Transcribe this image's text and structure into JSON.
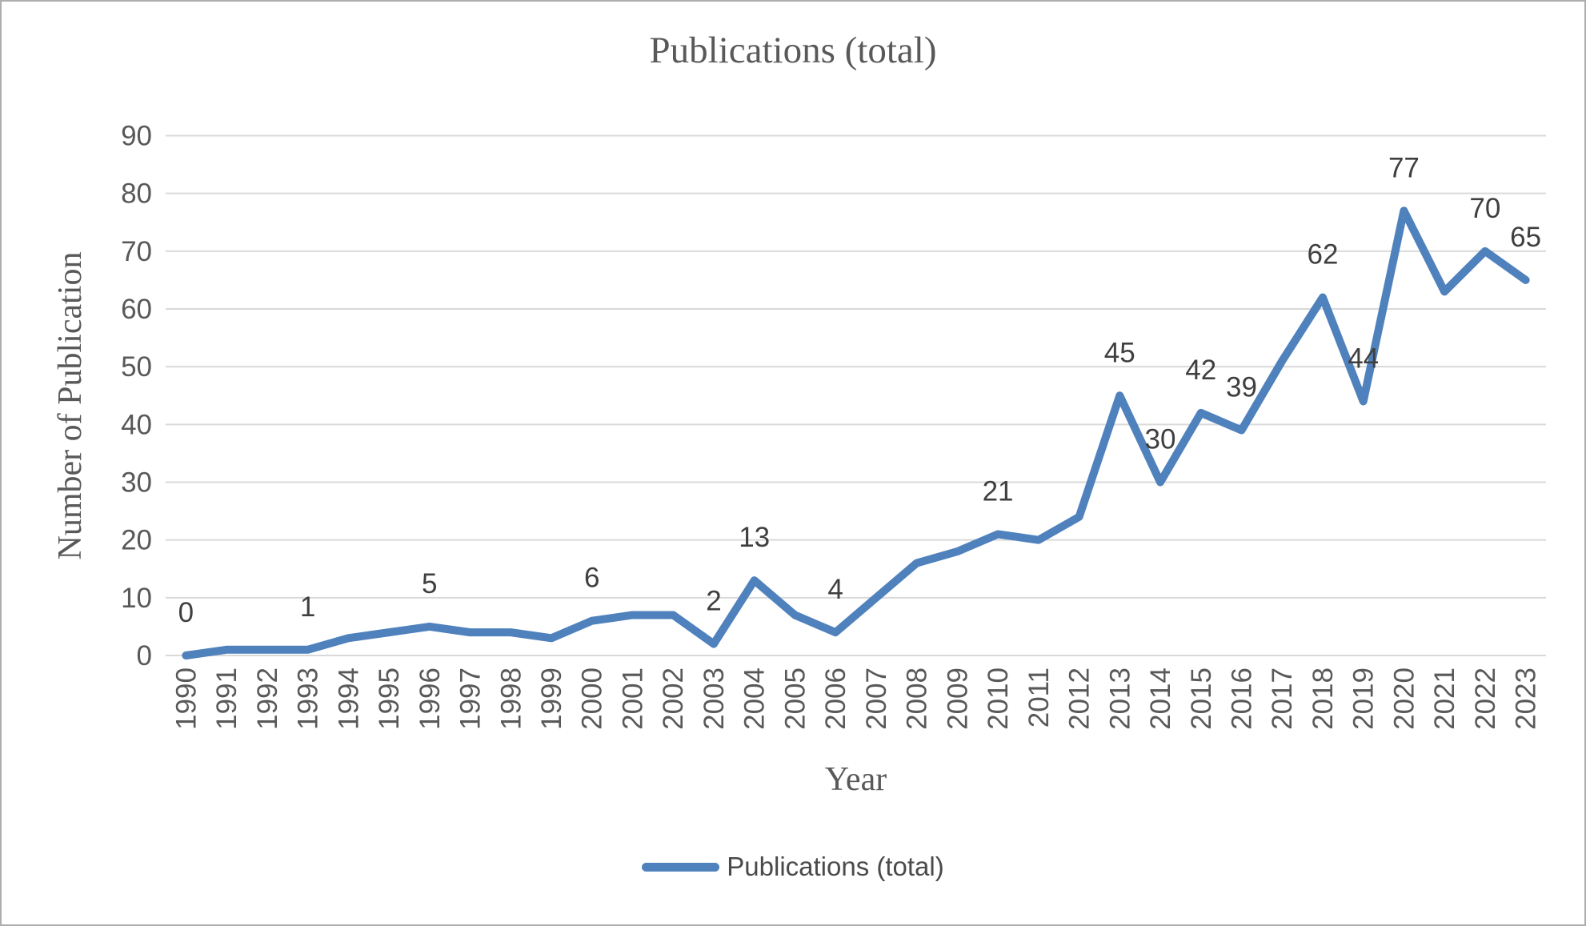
{
  "chart_data": {
    "type": "line",
    "title": "Publications (total)",
    "xlabel": "Year",
    "ylabel": "Number of Publication",
    "ylim": [
      0,
      90
    ],
    "ytick_interval": 10,
    "grid": "horizontal",
    "legend": {
      "position": "bottom",
      "label": "Publications (total)",
      "marker": "line-segment"
    },
    "categories": [
      1990,
      1991,
      1992,
      1993,
      1994,
      1995,
      1996,
      1997,
      1998,
      1999,
      2000,
      2001,
      2002,
      2003,
      2004,
      2005,
      2006,
      2007,
      2008,
      2009,
      2010,
      2011,
      2012,
      2013,
      2014,
      2015,
      2016,
      2017,
      2018,
      2019,
      2020,
      2021,
      2022,
      2023
    ],
    "series": [
      {
        "name": "Publications (total)",
        "color": "#4F81BD",
        "values": [
          0,
          1,
          1,
          1,
          3,
          4,
          5,
          4,
          4,
          3,
          6,
          7,
          7,
          2,
          13,
          7,
          4,
          10,
          16,
          18,
          21,
          20,
          24,
          45,
          30,
          42,
          39,
          51,
          62,
          44,
          77,
          63,
          70,
          65
        ]
      }
    ],
    "point_labels": {
      "1990": "0",
      "1993": "1",
      "1996": "5",
      "2000": "6",
      "2003": "2",
      "2004": "13",
      "2006": "4",
      "2010": "21",
      "2013": "45",
      "2014": "30",
      "2015": "42",
      "2016": "39",
      "2018": "62",
      "2019": "44",
      "2020": "77",
      "2022": "70",
      "2023": "65"
    }
  },
  "colors": {
    "line": "#4F81BD",
    "gridline": "#D9D9D9",
    "tick_text": "#595959",
    "axis_title_text": "#595959",
    "chart_title_text": "#595959",
    "data_label_text": "#3f3f3f",
    "frame_border": "#aeaeae",
    "background": "#ffffff"
  }
}
